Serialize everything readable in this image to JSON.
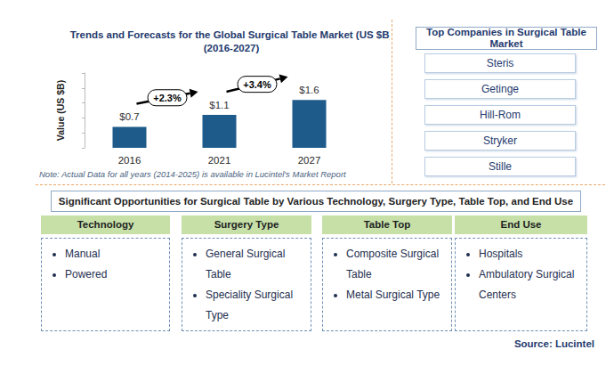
{
  "chart_data": {
    "type": "bar",
    "title": "Trends and Forecasts for the Global Surgical Table Market (US $B)",
    "subtitle": "(2016-2027)",
    "ylabel": "Value (US $B)",
    "categories": [
      "2016",
      "2021",
      "2027"
    ],
    "values": [
      0.7,
      1.1,
      1.6
    ],
    "value_labels": [
      "$0.7",
      "$1.1",
      "$1.6"
    ],
    "color": "#1f5b8a",
    "ylim": [
      0,
      2.5
    ],
    "yticks": [
      0,
      0.5,
      1,
      1.5,
      2,
      2.5
    ],
    "grid": false,
    "tick_labels": "x",
    "data_labels": true,
    "annotations": [
      {
        "text": "+2.3%",
        "from": "2016",
        "to": "2021"
      },
      {
        "text": "+3.4%",
        "from": "2021",
        "to": "2027"
      }
    ],
    "note": "Note: Actual Data for all years (2014-2025) is available in Lucintel's Market Report"
  },
  "companies": {
    "title": "Top Companies in Surgical Table Market",
    "items": [
      "Steris",
      "Getinge",
      "Hill-Rom",
      "Stryker",
      "Stille"
    ]
  },
  "opportunities": {
    "title": "Significant Opportunities for Surgical Table by Various Technology, Surgery Type, Table Top, and End Use",
    "columns": [
      {
        "heading": "Technology",
        "items": [
          "Manual",
          "Powered"
        ]
      },
      {
        "heading": "Surgery Type",
        "items": [
          "General Surgical Table",
          "Speciality Surgical Type"
        ]
      },
      {
        "heading": "Table Top",
        "items": [
          "Composite Surgical Table",
          "Metal Surgical Type"
        ]
      },
      {
        "heading": "End Use",
        "items": [
          "Hospitals",
          "Ambulatory Surgical Centers"
        ]
      }
    ]
  },
  "source": "Source: Lucintel"
}
